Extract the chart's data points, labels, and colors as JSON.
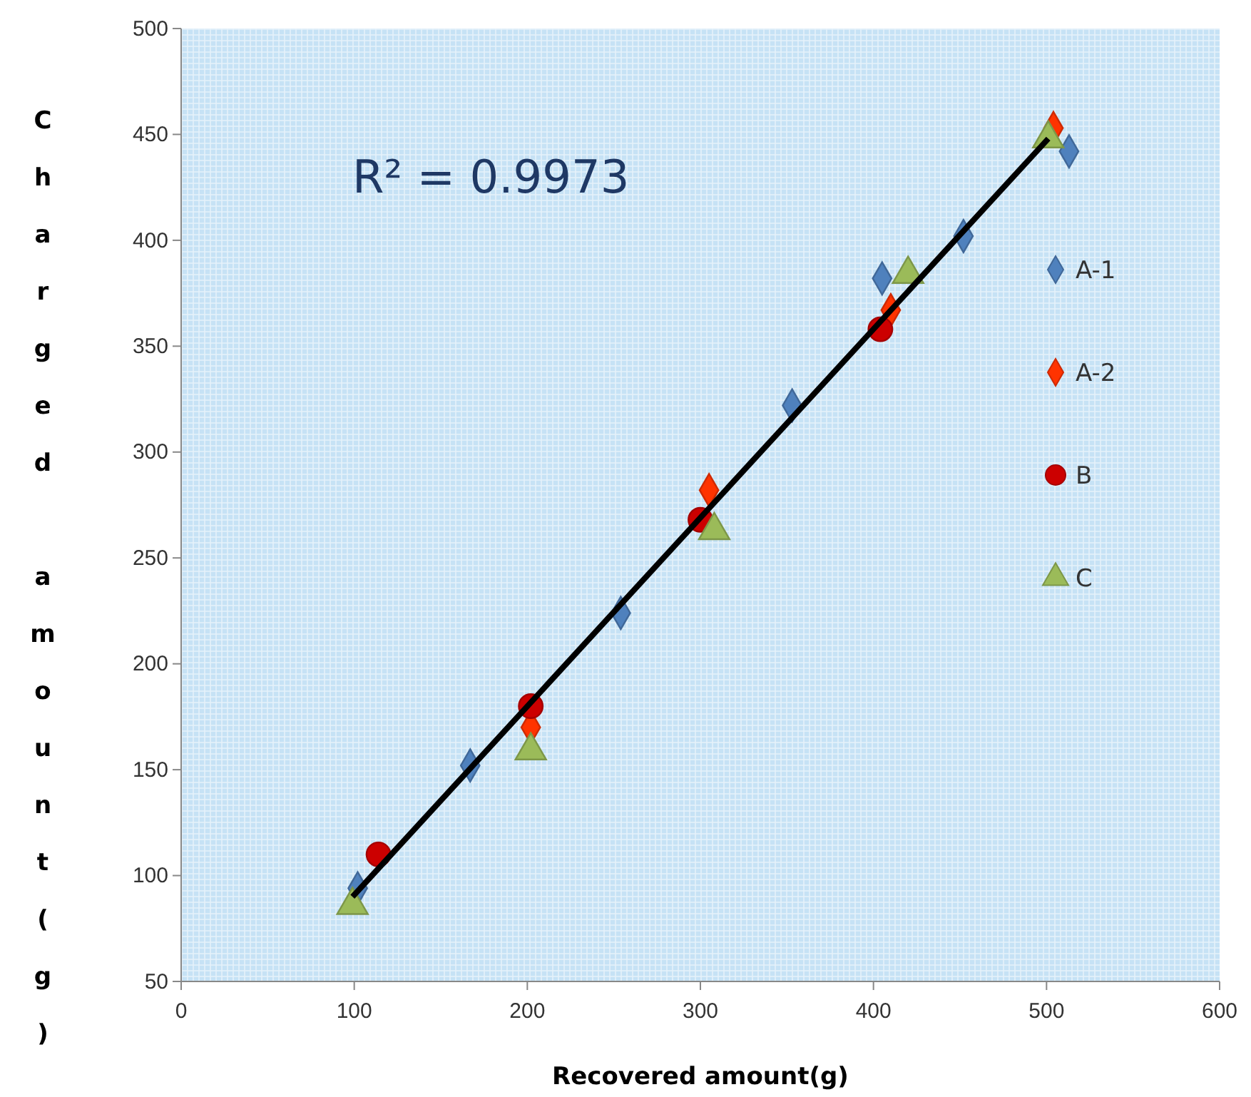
{
  "chart_data": {
    "type": "scatter",
    "xlabel": "Recovered amount(g)",
    "ylabel": "Charged amount(g)",
    "xlim": [
      0,
      600
    ],
    "xticks": [
      0,
      100,
      200,
      300,
      400,
      500,
      600
    ],
    "ylim": [
      50,
      500
    ],
    "yticks": [
      50,
      100,
      150,
      200,
      250,
      300,
      350,
      400,
      450,
      500
    ],
    "grid": false,
    "legend": "right",
    "annotations": [
      "R² = 0.9973"
    ],
    "series": [
      {
        "type": "line",
        "color": "#000000",
        "x": [
          99,
          501
        ],
        "values": [
          90,
          448
        ]
      },
      {
        "name": "A-1",
        "color": "#4f81bd",
        "marker": "diamond",
        "x": [
          102,
          167,
          254,
          353,
          405,
          452,
          513
        ],
        "values": [
          94,
          152,
          224,
          322,
          382,
          402,
          442
        ]
      },
      {
        "name": "A-2",
        "color": "#ff3300",
        "marker": "diamond",
        "x": [
          202,
          305,
          410,
          504
        ],
        "values": [
          170,
          282,
          367,
          453
        ]
      },
      {
        "name": "B",
        "color": "#cc0000",
        "marker": "circle",
        "x": [
          114,
          202,
          300,
          404
        ],
        "values": [
          110,
          180,
          268,
          358
        ]
      },
      {
        "name": "C",
        "color": "#9bbb59",
        "marker": "triangle",
        "x": [
          99,
          202,
          308,
          420,
          501
        ],
        "values": [
          86,
          159,
          263,
          384,
          448
        ]
      }
    ]
  }
}
